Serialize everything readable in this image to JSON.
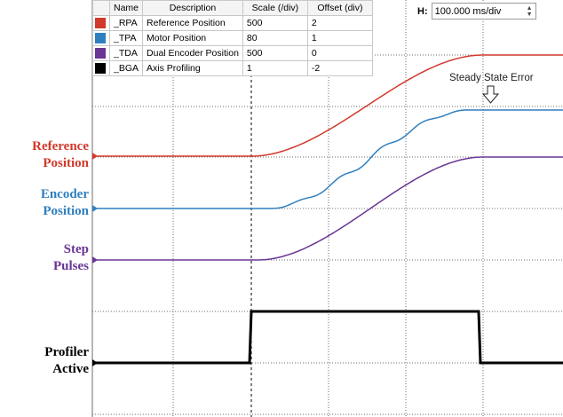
{
  "legend": {
    "headers": [
      "Name",
      "Description",
      "Scale (/div)",
      "Offset (div)"
    ],
    "rows": [
      {
        "name": "_RPA",
        "description": "Reference Position",
        "scale": "500",
        "offset": "2",
        "color": "#d0392b"
      },
      {
        "name": "_TPA",
        "description": "Motor Position",
        "scale": "80",
        "offset": "1",
        "color": "#2f7fbf"
      },
      {
        "name": "_TDA",
        "description": "Dual Encoder Position",
        "scale": "500",
        "offset": "0",
        "color": "#6a3594"
      },
      {
        "name": "_BGA",
        "description": "Axis Profiling",
        "scale": "1",
        "offset": "-2",
        "color": "#000000"
      }
    ]
  },
  "hscale": {
    "label": "H:",
    "value": "100.000 ms/div"
  },
  "labels": {
    "reference": {
      "line1": "Reference",
      "line2": "Position",
      "color": "#d0392b"
    },
    "encoder": {
      "line1": "Encoder",
      "line2": "Position",
      "color": "#2f7fbf"
    },
    "step": {
      "line1": "Step",
      "line2": "Pulses",
      "color": "#6a3594"
    },
    "profiler": {
      "line1": "Profiler",
      "line2": "Active",
      "color": "#000000"
    }
  },
  "annotation": {
    "text": "Steady State Error",
    "icon": "down-arrow-icon"
  },
  "colors": {
    "grid": "#6e6e6e",
    "cursor": "#000000"
  }
}
